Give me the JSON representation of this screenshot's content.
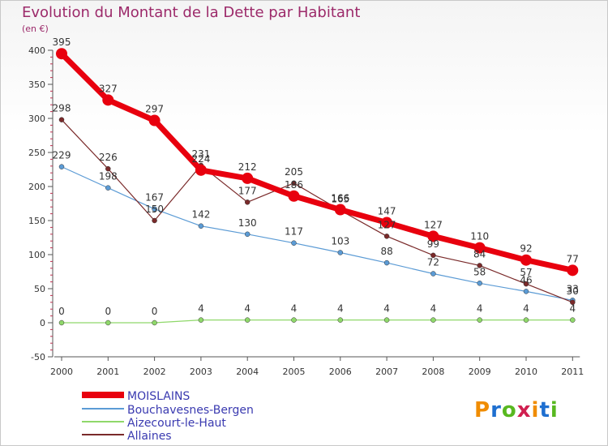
{
  "title": "Evolution du Montant de la Dette par Habitant",
  "unit": "(en €)",
  "logo": {
    "letters": [
      "P",
      "r",
      "o",
      "x",
      "i",
      "t",
      "i"
    ],
    "colors": [
      "#f08c00",
      "#1e6fd0",
      "#58b820",
      "#d02050",
      "#f08c00",
      "#1e6fd0",
      "#58b820"
    ]
  },
  "chart_data": {
    "type": "line",
    "title": "Evolution du Montant de la Dette par Habitant",
    "ylabel": "(en €)",
    "xlabel": "",
    "x": [
      "2000",
      "2001",
      "2002",
      "2003",
      "2004",
      "2005",
      "2006",
      "2007",
      "2008",
      "2009",
      "2010",
      "2011"
    ],
    "ylim": [
      -50,
      400
    ],
    "yticks": [
      "-50",
      "0",
      "50",
      "100",
      "150",
      "200",
      "250",
      "300",
      "350",
      "400"
    ],
    "grid": false,
    "legend": "bottom-left",
    "series": [
      {
        "name": "MOISLAINS",
        "color": "#e8000e",
        "values": [
          395,
          327,
          297,
          224,
          212,
          186,
          166,
          147,
          127,
          110,
          92,
          77
        ],
        "labels": [
          "395",
          "327",
          "297",
          "224",
          "212",
          "186",
          "166",
          "147",
          "127",
          "110",
          "92",
          "77"
        ]
      },
      {
        "name": "Bouchavesnes-Bergen",
        "color": "#5b9bd5",
        "values": [
          229,
          198,
          167,
          142,
          130,
          117,
          103,
          88,
          72,
          58,
          46,
          33
        ],
        "labels": [
          "229",
          "198",
          "167",
          "142",
          "130",
          "117",
          "103",
          "88",
          "72",
          "58",
          "46",
          "33"
        ]
      },
      {
        "name": "Aizecourt-le-Haut",
        "color": "#8fd86a",
        "values": [
          0,
          0,
          0,
          4,
          4,
          4,
          4,
          4,
          4,
          4,
          4,
          4
        ],
        "labels": [
          "0",
          "0",
          "0",
          "4",
          "4",
          "4",
          "4",
          "4",
          "4",
          "4",
          "4",
          "4"
        ]
      },
      {
        "name": "Allaines",
        "color": "#7a2a2a",
        "values": [
          298,
          226,
          150,
          231,
          177,
          205,
          165,
          127,
          99,
          84,
          57,
          30
        ],
        "labels": [
          "298",
          "226",
          "150",
          "231",
          "177",
          "205",
          "165",
          "127",
          "99",
          "84",
          "57",
          "30"
        ]
      }
    ]
  }
}
